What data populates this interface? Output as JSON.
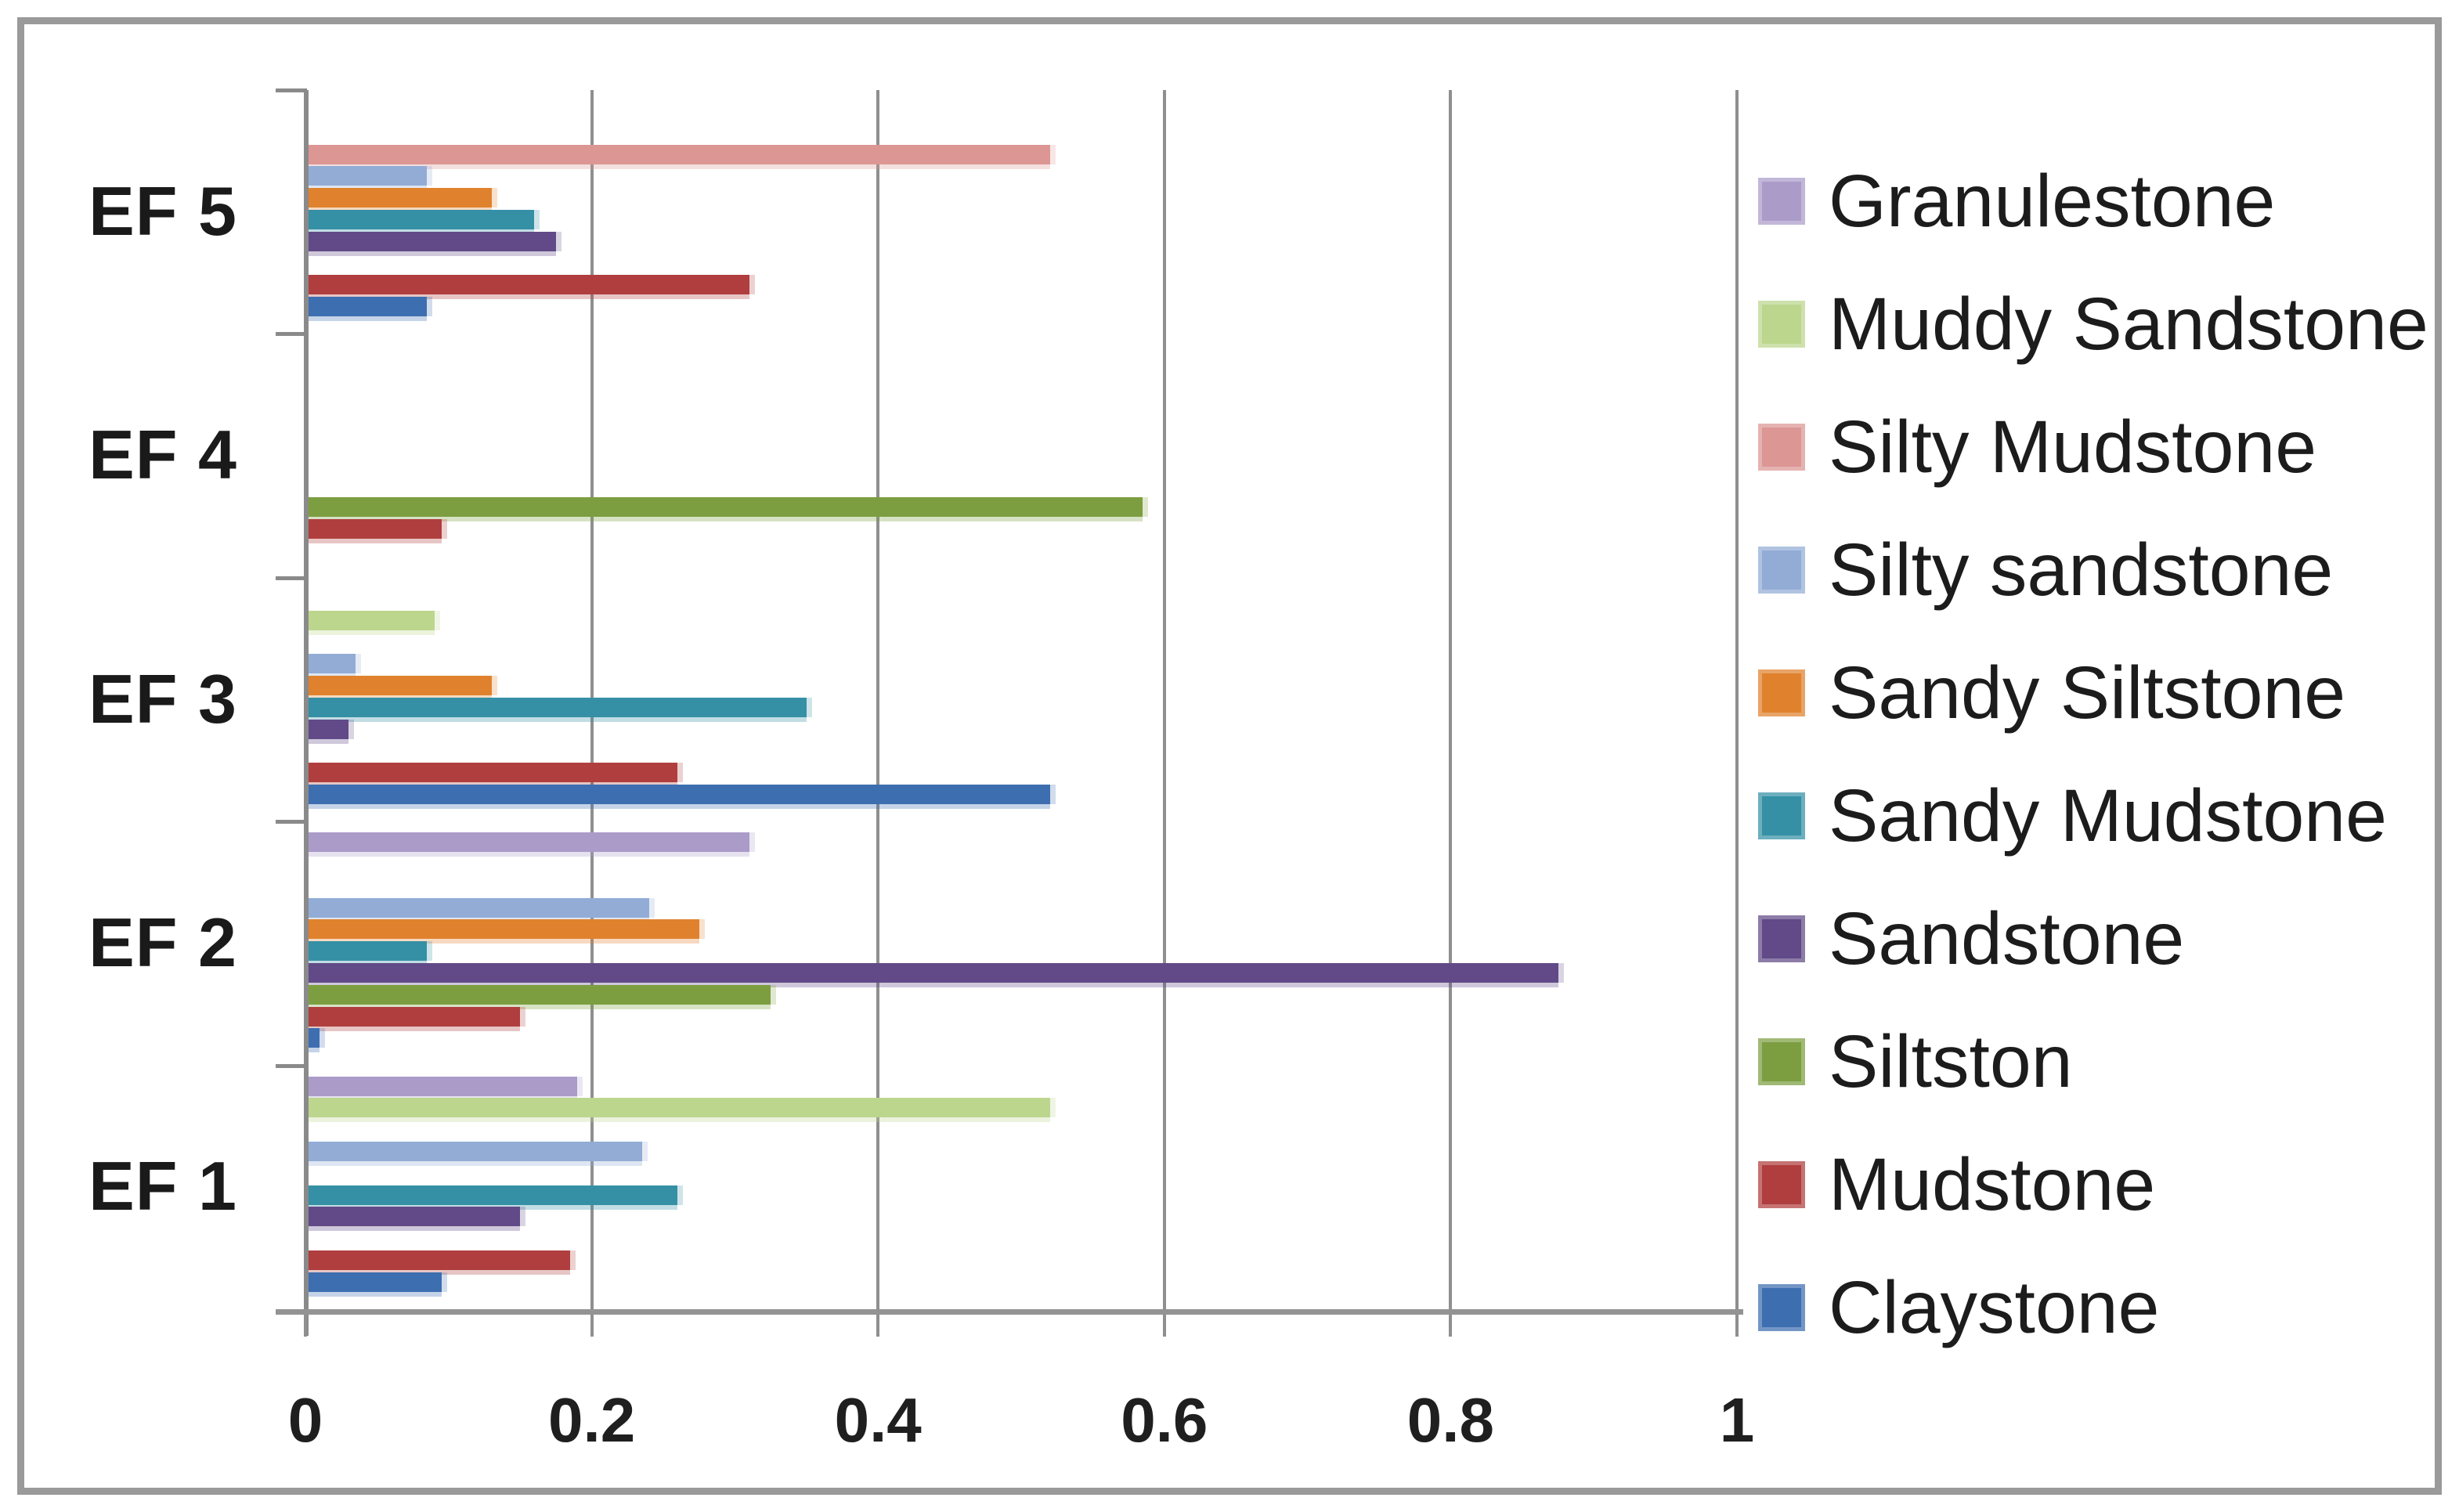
{
  "chart_data": {
    "type": "bar",
    "orientation": "horizontal",
    "title": "",
    "xlabel": "",
    "ylabel": "",
    "xlim": [
      0,
      1
    ],
    "x_ticks": [
      "0",
      "0.2",
      "0.4",
      "0.6",
      "0.8",
      "1"
    ],
    "x_tick_values": [
      0,
      0.2,
      0.4,
      0.6,
      0.8,
      1
    ],
    "grid": true,
    "legend_position": "right",
    "categories": [
      "EF 5",
      "EF 4",
      "EF 3",
      "EF 2",
      "EF 1"
    ],
    "series": [
      {
        "name": "Granulestone",
        "color": "#ab9bc9",
        "values": [
          0,
          0,
          0,
          0.31,
          0.19
        ]
      },
      {
        "name": "Muddy Sandstone",
        "color": "#bcd68e",
        "values": [
          0,
          0,
          0.09,
          0,
          0.52
        ]
      },
      {
        "name": "Silty Mudstone",
        "color": "#dc9694",
        "values": [
          0.52,
          0,
          0,
          0,
          0
        ]
      },
      {
        "name": "Silty sandstone",
        "color": "#92acd6",
        "values": [
          0.085,
          0,
          0.035,
          0.24,
          0.235
        ]
      },
      {
        "name": "Sandy Siltstone",
        "color": "#e0822d",
        "values": [
          0.13,
          0,
          0.13,
          0.275,
          0
        ]
      },
      {
        "name": "Sandy Mudstone",
        "color": "#3590a5",
        "values": [
          0.16,
          0,
          0.35,
          0.085,
          0.26
        ]
      },
      {
        "name": "Sandstone",
        "color": "#614a87",
        "values": [
          0.175,
          0,
          0.03,
          0.875,
          0.15
        ]
      },
      {
        "name": "Siltston",
        "color": "#7c9e40",
        "values": [
          0,
          0.585,
          0,
          0.325,
          0
        ]
      },
      {
        "name": "Mudstone",
        "color": "#b03e3e",
        "values": [
          0.31,
          0.095,
          0.26,
          0.15,
          0.185
        ]
      },
      {
        "name": "Claystone",
        "color": "#3d6eb0",
        "values": [
          0.085,
          0,
          0.52,
          0.01,
          0.095
        ]
      }
    ]
  }
}
